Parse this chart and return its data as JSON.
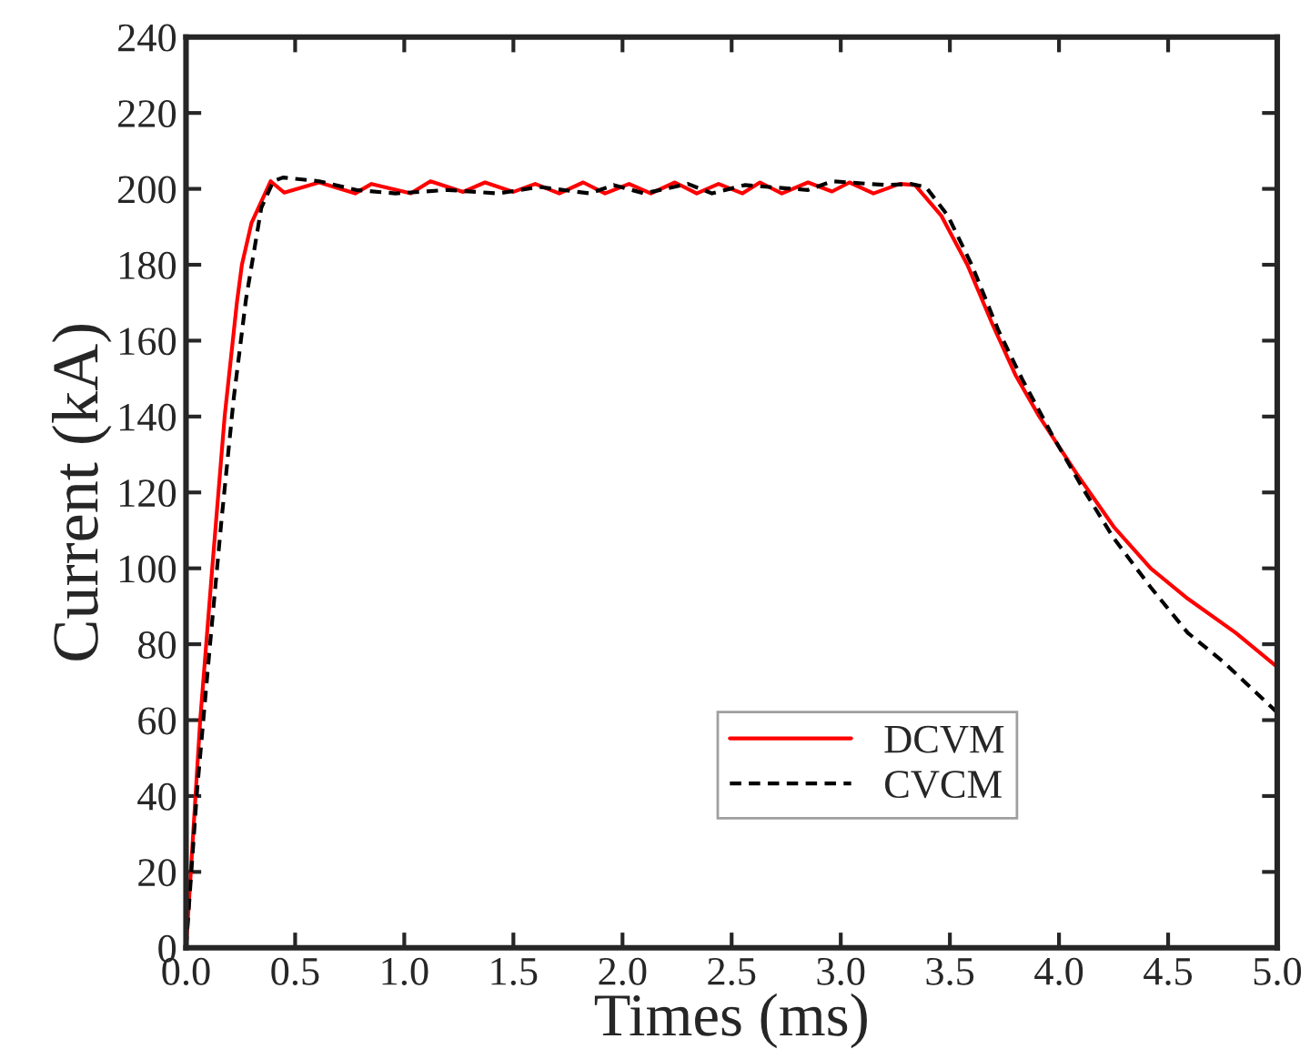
{
  "chart_data": {
    "type": "line",
    "xlabel": "Times (ms)",
    "ylabel": "Current (kA)",
    "xlim": [
      0,
      5
    ],
    "ylim": [
      0,
      240
    ],
    "xticks": [
      {
        "value": 0,
        "label": "0.0"
      },
      {
        "value": 0.5,
        "label": "0.5"
      },
      {
        "value": 1,
        "label": "1.0"
      },
      {
        "value": 1.5,
        "label": "1.5"
      },
      {
        "value": 2,
        "label": "2.0"
      },
      {
        "value": 2.5,
        "label": "2.5"
      },
      {
        "value": 3,
        "label": "3.0"
      },
      {
        "value": 3.5,
        "label": "3.5"
      },
      {
        "value": 4,
        "label": "4.0"
      },
      {
        "value": 4.5,
        "label": "4.5"
      },
      {
        "value": 5,
        "label": "5.0"
      }
    ],
    "yticks": [
      0,
      20,
      40,
      60,
      80,
      100,
      120,
      140,
      160,
      180,
      200,
      220,
      240
    ],
    "grid": false,
    "legend": "bottom right",
    "series": [
      {
        "name": "DCVM",
        "color": "#ff0000",
        "line_style": "solid",
        "x": [
          0,
          0.022,
          0.065,
          0.12,
          0.177,
          0.233,
          0.256,
          0.3,
          0.388,
          0.45,
          0.61,
          0.775,
          0.85,
          1.03,
          1.12,
          1.27,
          1.37,
          1.5,
          1.6,
          1.71,
          1.82,
          1.92,
          2.03,
          2.13,
          2.24,
          2.34,
          2.44,
          2.55,
          2.63,
          2.73,
          2.85,
          2.96,
          3.04,
          3.15,
          3.27,
          3.34,
          3.46,
          3.58,
          3.69,
          3.8,
          3.91,
          4.08,
          4.25,
          4.42,
          4.59,
          4.81,
          5.0
        ],
        "values": [
          0,
          20,
          60,
          100,
          140,
          170,
          180,
          191,
          202,
          199,
          201.7,
          198.8,
          201.3,
          198.8,
          202,
          199.2,
          201.7,
          199.2,
          201.3,
          198.8,
          201.7,
          198.8,
          201.3,
          198.8,
          201.7,
          198.8,
          201.3,
          198.8,
          201.7,
          198.8,
          201.7,
          199.3,
          201.7,
          198.8,
          201.3,
          201,
          193,
          180,
          165,
          151,
          140,
          125,
          111,
          100,
          92,
          83,
          74
        ]
      },
      {
        "name": "CVCM",
        "color": "#000000",
        "line_style": "dashed",
        "x": [
          0,
          0.05,
          0.107,
          0.163,
          0.219,
          0.275,
          0.345,
          0.4,
          0.444,
          0.61,
          0.78,
          0.96,
          1.2,
          1.43,
          1.62,
          1.85,
          1.96,
          2.1,
          2.3,
          2.41,
          2.56,
          2.85,
          2.96,
          3.21,
          3.32,
          3.39,
          3.49,
          3.6,
          3.72,
          3.83,
          3.97,
          4.11,
          4.25,
          4.42,
          4.59,
          4.76,
          5.0
        ],
        "values": [
          0,
          41,
          78,
          113,
          145,
          171,
          195,
          202,
          203,
          202,
          199.7,
          198.8,
          199.7,
          198.8,
          200.5,
          198.8,
          201,
          198.8,
          201.3,
          198.8,
          201,
          199.7,
          202,
          201,
          201.3,
          200.5,
          193,
          180,
          163,
          150,
          135,
          121,
          108,
          95,
          83,
          75,
          62
        ]
      }
    ]
  }
}
